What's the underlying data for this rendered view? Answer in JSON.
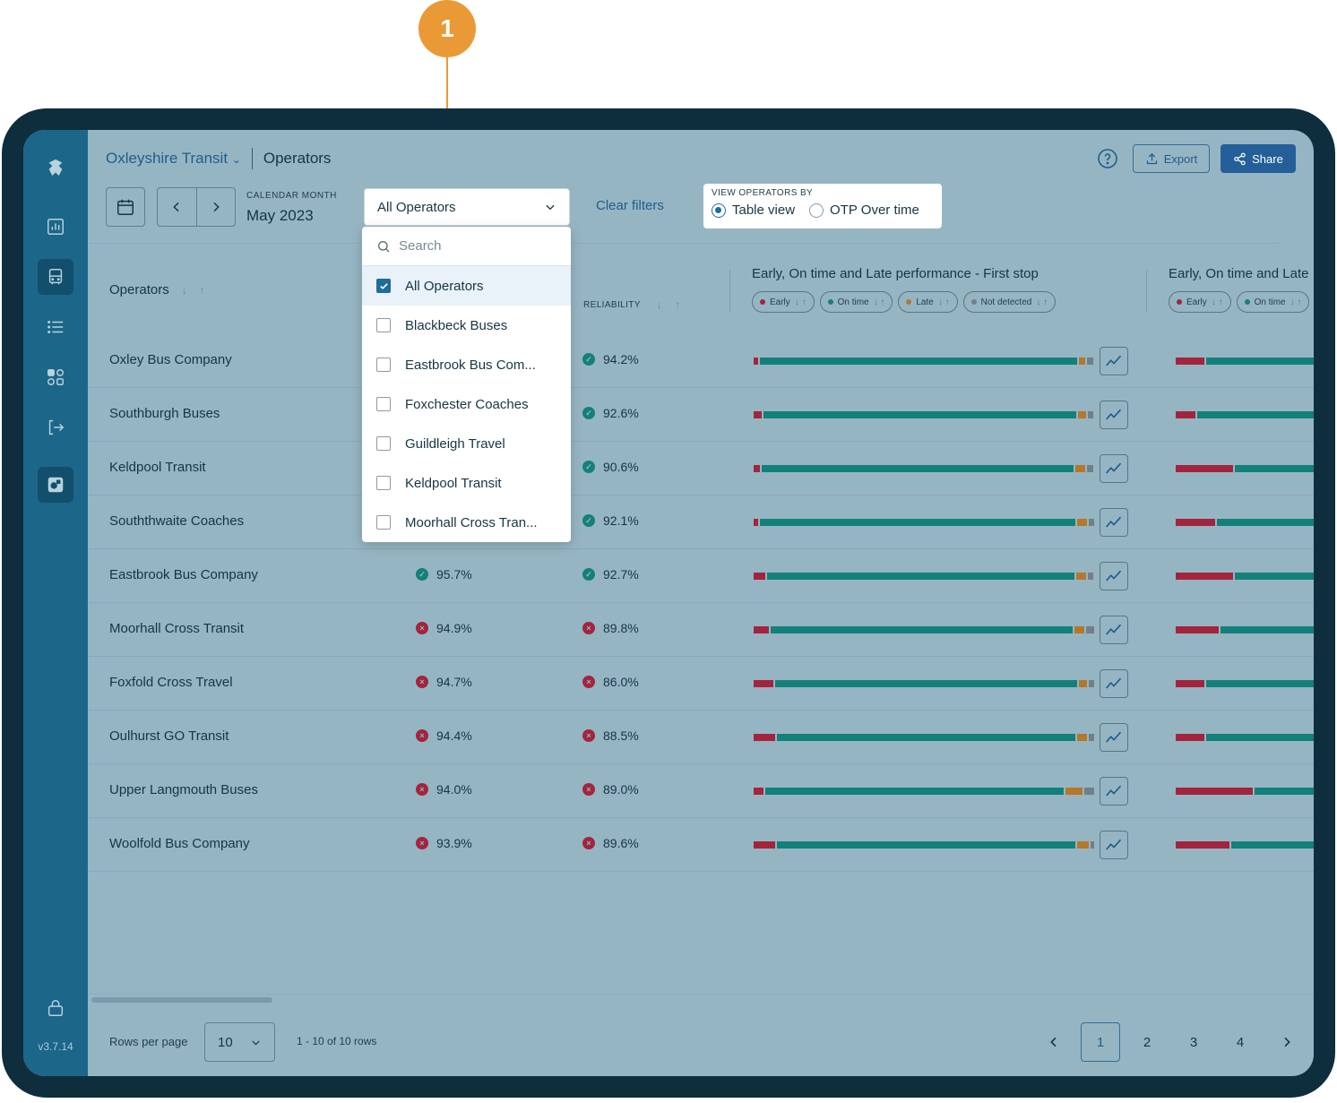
{
  "annotation": {
    "number": "1"
  },
  "app": {
    "version": "v3.7.14"
  },
  "header": {
    "org": "Oxleyshire Transit",
    "page": "Operators",
    "export_label": "Export",
    "share_label": "Share"
  },
  "filters": {
    "calendar_label": "CALENDAR MONTH",
    "calendar_value": "May 2023",
    "operator_select": "All Operators",
    "clear_label": "Clear filters",
    "view_title": "VIEW OPERATORS BY",
    "view_options": [
      {
        "label": "Table view",
        "selected": true
      },
      {
        "label": "OTP Over time",
        "selected": false
      }
    ]
  },
  "dropdown": {
    "search_placeholder": "Search",
    "items": [
      {
        "label": "All Operators",
        "checked": true
      },
      {
        "label": "Blackbeck Buses",
        "checked": false
      },
      {
        "label": "Eastbrook Bus Com...",
        "checked": false
      },
      {
        "label": "Foxchester Coaches",
        "checked": false
      },
      {
        "label": "Guildleigh Travel",
        "checked": false
      },
      {
        "label": "Keldpool Transit",
        "checked": false
      },
      {
        "label": "Moorhall Cross Tran...",
        "checked": false
      }
    ]
  },
  "table": {
    "col_operators": "Operators",
    "col_reliability": "RELIABILITY",
    "group1_title": "Early, On time and Late performance - First stop",
    "group2_title": "Early, On time and Late",
    "chips1": [
      {
        "label": "Early",
        "color": "#a3243d"
      },
      {
        "label": "On time",
        "color": "#14807a"
      },
      {
        "label": "Late",
        "color": "#b5772a"
      },
      {
        "label": "Not detected",
        "color": "#6f8088"
      }
    ],
    "chips2": [
      {
        "label": "Early",
        "color": "#a3243d"
      },
      {
        "label": "On time",
        "color": "#14807a"
      }
    ],
    "rows": [
      {
        "name": "Oxley Bus Company",
        "otp": "",
        "otp_ok": true,
        "reliability": "94.2%",
        "rel_ok": true,
        "bar": [
          0.014,
          0.946,
          0.02,
          0.02
        ],
        "bar2_early": 0.16
      },
      {
        "name": "Southburgh Buses",
        "otp": "",
        "otp_ok": true,
        "reliability": "92.6%",
        "rel_ok": true,
        "bar": [
          0.024,
          0.934,
          0.025,
          0.017
        ],
        "bar2_early": 0.11
      },
      {
        "name": "Keldpool Transit",
        "otp": "",
        "otp_ok": true,
        "reliability": "90.6%",
        "rel_ok": true,
        "bar": [
          0.02,
          0.93,
          0.03,
          0.02
        ],
        "bar2_early": 0.32
      },
      {
        "name": "Souththwaite Coaches",
        "otp": "",
        "otp_ok": true,
        "reliability": "92.1%",
        "rel_ok": true,
        "bar": [
          0.014,
          0.94,
          0.03,
          0.016
        ],
        "bar2_early": 0.22
      },
      {
        "name": "Eastbrook Bus Company",
        "otp": "95.7%",
        "otp_ok": true,
        "reliability": "92.7%",
        "rel_ok": true,
        "bar": [
          0.035,
          0.918,
          0.03,
          0.017
        ],
        "bar2_early": 0.32
      },
      {
        "name": "Moorhall Cross Transit",
        "otp": "94.9%",
        "otp_ok": false,
        "reliability": "89.8%",
        "rel_ok": false,
        "bar": [
          0.045,
          0.9,
          0.03,
          0.025
        ],
        "bar2_early": 0.24
      },
      {
        "name": "Foxfold Cross Travel",
        "otp": "94.7%",
        "otp_ok": false,
        "reliability": "86.0%",
        "rel_ok": false,
        "bar": [
          0.06,
          0.9,
          0.025,
          0.015
        ],
        "bar2_early": 0.16
      },
      {
        "name": "Oulhurst GO Transit",
        "otp": "94.4%",
        "otp_ok": false,
        "reliability": "88.5%",
        "rel_ok": false,
        "bar": [
          0.065,
          0.89,
          0.03,
          0.015
        ],
        "bar2_early": 0.16
      },
      {
        "name": "Upper Langmouth Buses",
        "otp": "94.0%",
        "otp_ok": false,
        "reliability": "89.0%",
        "rel_ok": false,
        "bar": [
          0.03,
          0.89,
          0.05,
          0.03
        ],
        "bar2_early": 0.43
      },
      {
        "name": "Woolfold Bus Company",
        "otp": "93.9%",
        "otp_ok": false,
        "reliability": "89.6%",
        "rel_ok": false,
        "bar": [
          0.065,
          0.89,
          0.035,
          0.01
        ],
        "bar2_early": 0.3
      }
    ]
  },
  "footer": {
    "rows_per_page_label": "Rows per page",
    "rows_per_page_value": "10",
    "range_text": "1 - 10 of 10 rows",
    "pages": [
      "1",
      "2",
      "3",
      "4"
    ],
    "current_page": "1"
  },
  "colors": {
    "early": "#a3243d",
    "on_time": "#14807a",
    "late": "#b5772a",
    "not_detected": "#6f8088",
    "ok": "#14807a",
    "bad": "#a3243d"
  }
}
